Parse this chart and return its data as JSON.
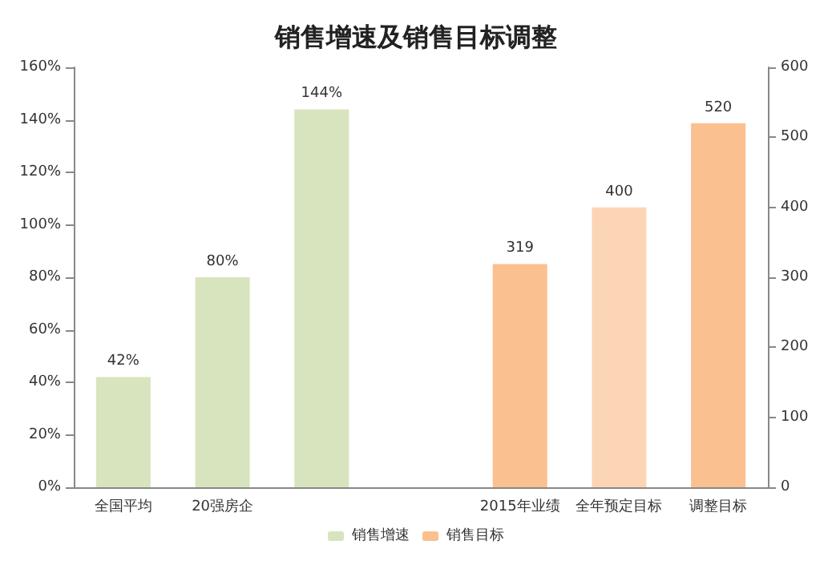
{
  "chart_data": {
    "type": "bar",
    "title": "销售增速及销售目标调整",
    "categories": [
      "全国平均",
      "20强房企",
      null,
      null,
      "2015年业绩",
      "全年预定目标",
      "调整目标"
    ],
    "series": [
      {
        "name": "销售增速",
        "color": "#d7e4bd",
        "colors": [
          "#d7e4bd",
          "#d7e4bd",
          "#d7e4bd",
          null,
          null,
          null,
          null
        ],
        "values": [
          42,
          80,
          144,
          null,
          null,
          null,
          null
        ],
        "value_labels": [
          "42%",
          "80%",
          "144%",
          null,
          null,
          null,
          null
        ]
      },
      {
        "name": "销售目标",
        "color": "#fac090",
        "axis": "y2",
        "colors": [
          null,
          null,
          null,
          null,
          "#fac090",
          "#fcd5b5",
          "#fac090"
        ],
        "values": [
          null,
          null,
          null,
          null,
          319,
          400,
          520
        ],
        "value_labels": [
          null,
          null,
          null,
          null,
          "319",
          "400",
          "520"
        ]
      }
    ],
    "ylim": [
      0,
      160
    ],
    "yticks": [
      {
        "value": 0,
        "label": "0%"
      },
      {
        "value": 20,
        "label": "20%"
      },
      {
        "value": 40,
        "label": "40%"
      },
      {
        "value": 60,
        "label": "60%"
      },
      {
        "value": 80,
        "label": "80%"
      },
      {
        "value": 100,
        "label": "100%"
      },
      {
        "value": 120,
        "label": "120%"
      },
      {
        "value": 140,
        "label": "140%"
      },
      {
        "value": 160,
        "label": "160%"
      }
    ],
    "y2lim": [
      0,
      600
    ],
    "y2ticks": [
      0,
      100,
      200,
      300,
      400,
      500,
      600
    ],
    "grid": false,
    "legend": "bottom"
  }
}
